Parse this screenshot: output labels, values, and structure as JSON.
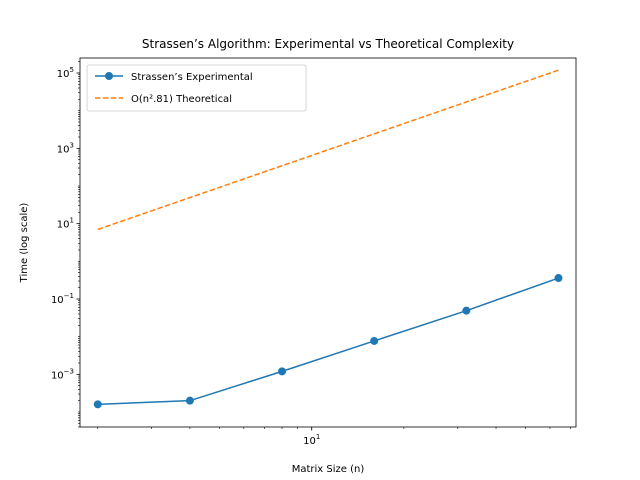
{
  "chart_data": {
    "type": "line",
    "title": "Strassen’s Algorithm: Experimental vs Theoretical Complexity",
    "xlabel": "Matrix Size (n)",
    "ylabel": "Time (log scale)",
    "xscale": "log",
    "yscale": "log",
    "xlim": [
      1.75,
      73
    ],
    "ylim": [
      4e-05,
      250000
    ],
    "grid": false,
    "legend_position": "top-left",
    "x_ticks": [
      {
        "value": 10,
        "base": "10",
        "exp": "1"
      }
    ],
    "y_ticks": [
      {
        "value": 0.001,
        "base": "10",
        "exp": "−3"
      },
      {
        "value": 0.1,
        "base": "10",
        "exp": "−1"
      },
      {
        "value": 10,
        "base": "10",
        "exp": "1"
      },
      {
        "value": 1000,
        "base": "10",
        "exp": "3"
      },
      {
        "value": 100000,
        "base": "10",
        "exp": "5"
      }
    ],
    "series": [
      {
        "name": "Strassen’s Experimental",
        "color": "#1f77b4",
        "style": "solid",
        "marker": "circle",
        "x": [
          2,
          4,
          8,
          16,
          32,
          64
        ],
        "y": [
          0.00016,
          0.0002,
          0.0012,
          0.0077,
          0.049,
          0.36
        ]
      },
      {
        "name": "O(n².81) Theoretical",
        "color": "#ff7f0e",
        "style": "dashed",
        "marker": "none",
        "x": [
          2,
          4,
          8,
          16,
          32,
          64
        ],
        "y": [
          7.01,
          49.2,
          345,
          2422,
          17000,
          119300
        ]
      }
    ]
  }
}
